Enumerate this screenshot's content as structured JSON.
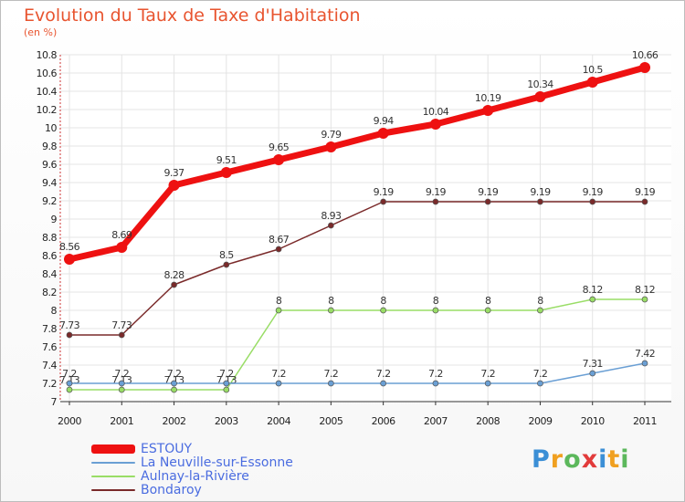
{
  "chart_data": {
    "type": "line",
    "title": "Evolution du Taux de Taxe d'Habitation",
    "subtitle": "(en %)",
    "x": [
      "2000",
      "2001",
      "2002",
      "2003",
      "2004",
      "2005",
      "2006",
      "2007",
      "2008",
      "2009",
      "2010",
      "2011"
    ],
    "ylim": [
      7,
      10.8
    ],
    "yticks": [
      "7",
      "7.2",
      "7.4",
      "7.6",
      "7.8",
      "8",
      "8.2",
      "8.4",
      "8.6",
      "8.8",
      "9",
      "9.2",
      "9.4",
      "9.6",
      "9.8",
      "10",
      "10.2",
      "10.4",
      "10.6",
      "10.8"
    ],
    "grid": true,
    "legend_position": "bottom-left",
    "series": [
      {
        "name": "ESTOUY",
        "color": "#ee1111",
        "values": [
          8.56,
          8.69,
          9.37,
          9.51,
          9.65,
          9.79,
          9.94,
          10.04,
          10.19,
          10.34,
          10.5,
          10.66
        ],
        "labels": [
          "8.56",
          "8.69",
          "9.37",
          "9.51",
          "9.65",
          "9.79",
          "9.94",
          "10.04",
          "10.19",
          "10.34",
          "10.5",
          "10.66"
        ]
      },
      {
        "name": "La Neuville-sur-Essonne",
        "color": "#6a9fd4",
        "values": [
          7.2,
          7.2,
          7.2,
          7.2,
          7.2,
          7.2,
          7.2,
          7.2,
          7.2,
          7.2,
          7.31,
          7.42
        ],
        "labels": [
          "7.2",
          "7.2",
          "7.2",
          "7.2",
          "7.2",
          "7.2",
          "7.2",
          "7.2",
          "7.2",
          "7.2",
          "7.31",
          "7.42"
        ]
      },
      {
        "name": "Aulnay-la-Rivière",
        "color": "#99dd66",
        "values": [
          7.13,
          7.13,
          7.13,
          7.13,
          8,
          8,
          8,
          8,
          8,
          8,
          8.12,
          8.12
        ],
        "labels": [
          "7.13",
          "7.13",
          "7.13",
          "7.13",
          "8",
          "8",
          "8",
          "8",
          "8",
          "8",
          "8.12",
          "8.12"
        ]
      },
      {
        "name": "Bondaroy",
        "color": "#7a2a2a",
        "values": [
          7.73,
          7.73,
          8.28,
          8.5,
          8.67,
          8.93,
          9.19,
          9.19,
          9.19,
          9.19,
          9.19,
          9.19
        ],
        "labels": [
          "7.73",
          "7.73",
          "8.28",
          "8.5",
          "8.67",
          "8.93",
          "9.19",
          "9.19",
          "9.19",
          "9.19",
          "9.19",
          "9.19"
        ]
      }
    ]
  },
  "logo": {
    "letters": [
      "P",
      "r",
      "o",
      "x",
      "i",
      "t",
      "i"
    ],
    "colors": [
      "#3b8fd6",
      "#f0a020",
      "#5cb85c",
      "#e23b3b",
      "#3b8fd6",
      "#f0a020",
      "#5cb85c"
    ]
  }
}
